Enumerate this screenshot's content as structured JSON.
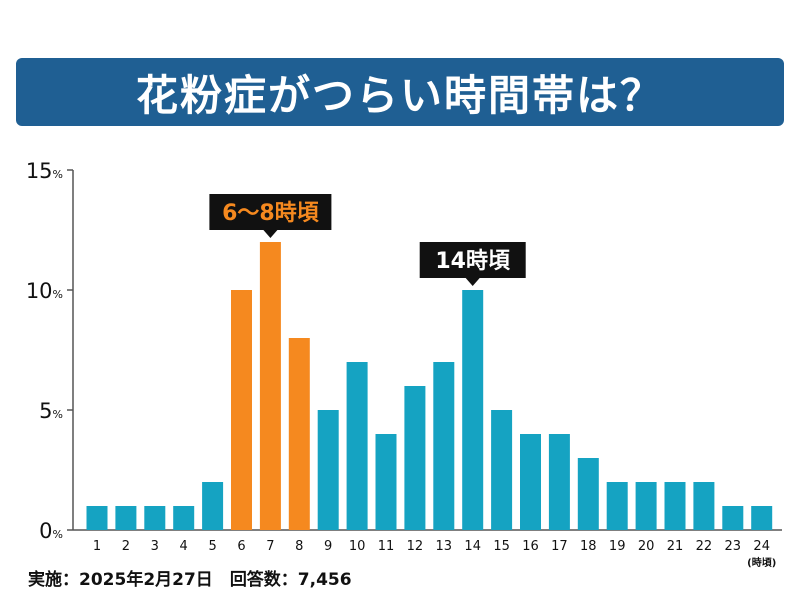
{
  "title": "花粉症がつらい時間帯は？",
  "footer": {
    "date_text": "実施：2025年2月27日",
    "count_text": "回答数：7,456"
  },
  "chart_data": {
    "type": "bar",
    "categories": [
      "1",
      "2",
      "3",
      "4",
      "5",
      "6",
      "7",
      "8",
      "9",
      "10",
      "11",
      "12",
      "13",
      "14",
      "15",
      "16",
      "17",
      "18",
      "19",
      "20",
      "21",
      "22",
      "23",
      "24"
    ],
    "values": [
      1,
      1,
      1,
      1,
      2,
      10,
      12,
      8,
      5,
      7,
      4,
      6,
      7,
      10,
      5,
      4,
      4,
      3,
      2,
      2,
      2,
      2,
      1,
      1
    ],
    "highlight_categories": [
      "6",
      "7",
      "8"
    ],
    "ylim": [
      0,
      15
    ],
    "yticks": [
      {
        "value": 0,
        "label": "0"
      },
      {
        "value": 5,
        "label": "5"
      },
      {
        "value": 10,
        "label": "10"
      },
      {
        "value": 15,
        "label": "15"
      }
    ],
    "y_unit": "%",
    "x_unit": "(時頃)",
    "grid": false,
    "annotations": [
      {
        "text": "6〜8時頃",
        "target_category": "7",
        "style": "orange"
      },
      {
        "text": "14時頃",
        "target_category": "14",
        "style": "black"
      }
    ],
    "colors": {
      "highlight": "#f5891f",
      "normal": "#15a3c2",
      "axis": "#555555",
      "annotation_orange_text": "#ffffff",
      "annotation_black": "#111111"
    }
  }
}
